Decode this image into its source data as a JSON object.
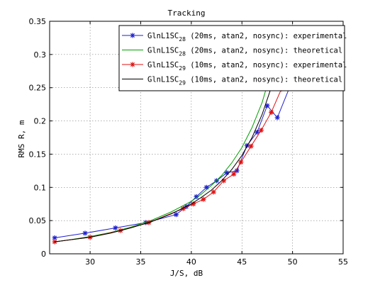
{
  "chart_data": {
    "type": "line",
    "title": "Tracking",
    "xlabel": "J/S, dB",
    "ylabel": "RMS R, m",
    "xlim": [
      26,
      55
    ],
    "ylim": [
      0,
      0.35
    ],
    "xticks": [
      30,
      35,
      40,
      45,
      50,
      55
    ],
    "yticks": [
      0,
      0.05,
      0.1,
      0.15,
      0.2,
      0.25,
      0.3,
      0.35
    ],
    "grid": true,
    "legend_position": "top-right",
    "series": [
      {
        "name": "GlnL1SC28 (20ms, atan2, nosync): experimental",
        "name_base": "GlnL1SC",
        "name_sub": "28",
        "name_rest": " (20ms, atan2, nosync): experimental",
        "color": "#1f1fd0",
        "marker": "asterisk",
        "x": [
          26.5,
          29.5,
          32.5,
          35.5,
          38.5,
          39.5,
          40.5,
          41.5,
          42.5,
          43.5,
          44.5,
          45.5,
          46.5,
          47.5,
          48.5,
          49.7
        ],
        "y": [
          0.024,
          0.031,
          0.039,
          0.047,
          0.059,
          0.071,
          0.086,
          0.1,
          0.11,
          0.122,
          0.125,
          0.163,
          0.183,
          0.223,
          0.205,
          0.25
        ]
      },
      {
        "name": "GlnL1SC28 (20ms, atan2, nosync): theoretical",
        "name_base": "GlnL1SC",
        "name_sub": "28",
        "name_rest": " (20ms, atan2, nosync): theoretical",
        "color": "#00a000",
        "marker": "none",
        "x": [
          26.5,
          28,
          30,
          32,
          34,
          36,
          38,
          40,
          41,
          42,
          43,
          44,
          45,
          46,
          47,
          48,
          48.7
        ],
        "y": [
          0.018,
          0.021,
          0.026,
          0.032,
          0.04,
          0.05,
          0.063,
          0.079,
          0.09,
          0.103,
          0.118,
          0.137,
          0.16,
          0.19,
          0.228,
          0.28,
          0.33
        ]
      },
      {
        "name": "GlnL1SC29 (10ms, atan2, nosync): experimental",
        "name_base": "GlnL1SC",
        "name_sub": "29",
        "name_rest": " (10ms, atan2, nosync): experimental",
        "color": "#e01010",
        "marker": "asterisk",
        "x": [
          26.5,
          30,
          33,
          35.8,
          39.2,
          40.2,
          41.2,
          42.2,
          43.2,
          44.2,
          44.9,
          45.9,
          46.9,
          47.9,
          48.9
        ],
        "y": [
          0.018,
          0.025,
          0.035,
          0.047,
          0.068,
          0.075,
          0.082,
          0.093,
          0.11,
          0.12,
          0.138,
          0.162,
          0.186,
          0.213,
          0.248
        ]
      },
      {
        "name": "GlnL1SC29 (10ms, atan2, nosync): theoretical",
        "name_base": "GlnL1SC",
        "name_sub": "29",
        "name_rest": " (10ms, atan2, nosync): theoretical",
        "color": "#000000",
        "marker": "none",
        "x": [
          26.5,
          28,
          30,
          32,
          34,
          36,
          38,
          40,
          41,
          42,
          43,
          44,
          45,
          46,
          47,
          48,
          49,
          49.4
        ],
        "y": [
          0.018,
          0.021,
          0.025,
          0.031,
          0.039,
          0.048,
          0.06,
          0.075,
          0.085,
          0.096,
          0.11,
          0.127,
          0.148,
          0.175,
          0.21,
          0.255,
          0.31,
          0.34
        ]
      }
    ]
  }
}
